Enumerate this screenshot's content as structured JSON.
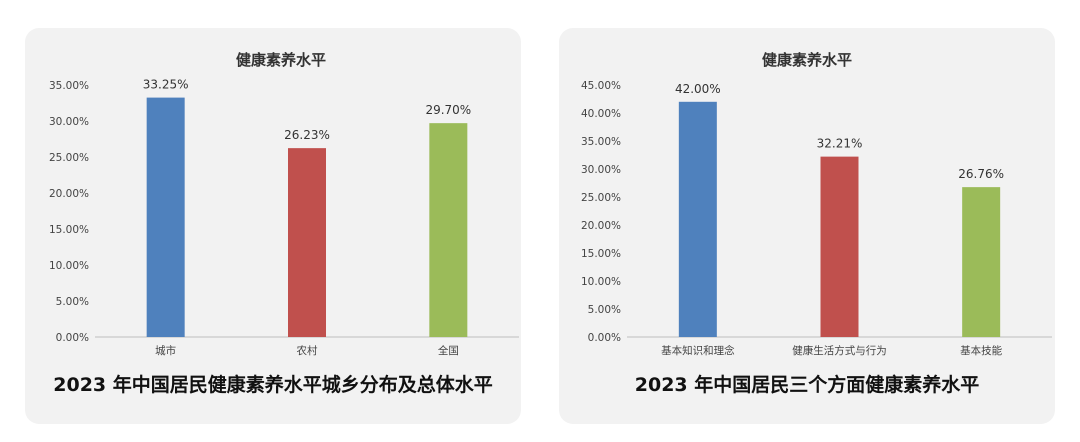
{
  "chart_data": [
    {
      "type": "bar",
      "title": "健康素养水平",
      "caption": "2023 年中国居民健康素养水平城乡分布及总体水平",
      "categories": [
        "城市",
        "农村",
        "全国"
      ],
      "values": [
        33.25,
        26.23,
        29.7
      ],
      "value_labels": [
        "33.25%",
        "26.23%",
        "29.70%"
      ],
      "colors": [
        "#4f81bd",
        "#c0504d",
        "#9bbb59"
      ],
      "ylim": [
        0,
        35
      ],
      "yticks": [
        0,
        5,
        10,
        15,
        20,
        25,
        30,
        35
      ],
      "ytick_labels": [
        "0.00%",
        "5.00%",
        "10.00%",
        "15.00%",
        "20.00%",
        "25.00%",
        "30.00%",
        "35.00%"
      ],
      "xlabel": "",
      "ylabel": "",
      "grid": false
    },
    {
      "type": "bar",
      "title": "健康素养水平",
      "caption": "2023 年中国居民三个方面健康素养水平",
      "categories": [
        "基本知识和理念",
        "健康生活方式与行为",
        "基本技能"
      ],
      "values": [
        42.0,
        32.21,
        26.76
      ],
      "value_labels": [
        "42.00%",
        "32.21%",
        "26.76%"
      ],
      "colors": [
        "#4f81bd",
        "#c0504d",
        "#9bbb59"
      ],
      "ylim": [
        0,
        45
      ],
      "yticks": [
        0,
        5,
        10,
        15,
        20,
        25,
        30,
        35,
        40,
        45
      ],
      "ytick_labels": [
        "0.00%",
        "5.00%",
        "10.00%",
        "15.00%",
        "20.00%",
        "25.00%",
        "30.00%",
        "35.00%",
        "40.00%",
        "45.00%"
      ],
      "xlabel": "",
      "ylabel": "",
      "grid": false
    }
  ]
}
